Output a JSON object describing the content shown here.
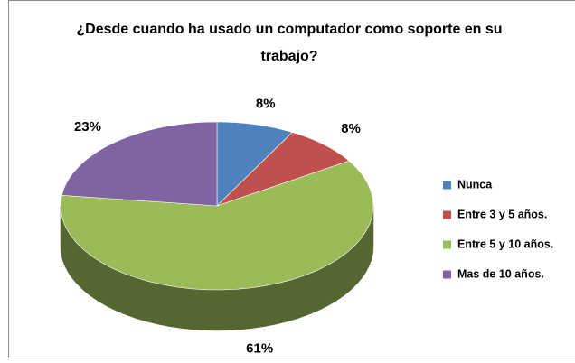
{
  "chart_data": {
    "type": "pie3d",
    "title": "¿Desde cuando ha usado un computador como soporte en su trabajo?",
    "categories": [
      "Nunca",
      "Entre 3 y 5 años.",
      "Entre 5 y 10 años.",
      "Mas de 10 años."
    ],
    "values": [
      8,
      8,
      61,
      23
    ],
    "value_labels": [
      "8%",
      "8%",
      "61%",
      "23%"
    ],
    "colors": [
      "#4f81bd",
      "#c0504d",
      "#9bbb59",
      "#8064a2"
    ],
    "legend": "right"
  }
}
